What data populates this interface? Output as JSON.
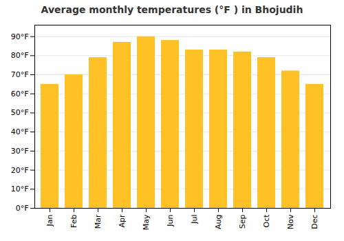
{
  "chart_data": {
    "type": "bar",
    "title": "Average monthly temperatures (°F ) in Bhojudih",
    "categories": [
      "Jan",
      "Feb",
      "Mar",
      "Apr",
      "May",
      "Jun",
      "Jul",
      "Aug",
      "Sep",
      "Oct",
      "Nov",
      "Dec"
    ],
    "values": [
      65,
      70,
      79,
      87,
      90,
      88,
      83,
      83,
      82,
      79,
      72,
      65
    ],
    "color": "#FFC125",
    "ylim": [
      0,
      96
    ],
    "yticks": [
      {
        "value": 0,
        "label": "0°F"
      },
      {
        "value": 10,
        "label": "10°F"
      },
      {
        "value": 20,
        "label": "20°F"
      },
      {
        "value": 30,
        "label": "30°F"
      },
      {
        "value": 40,
        "label": "40°F"
      },
      {
        "value": 50,
        "label": "50°F"
      },
      {
        "value": 60,
        "label": "60°F"
      },
      {
        "value": 70,
        "label": "70°F"
      },
      {
        "value": 80,
        "label": "80°F"
      },
      {
        "value": 90,
        "label": "90°F"
      }
    ],
    "grid": true
  }
}
